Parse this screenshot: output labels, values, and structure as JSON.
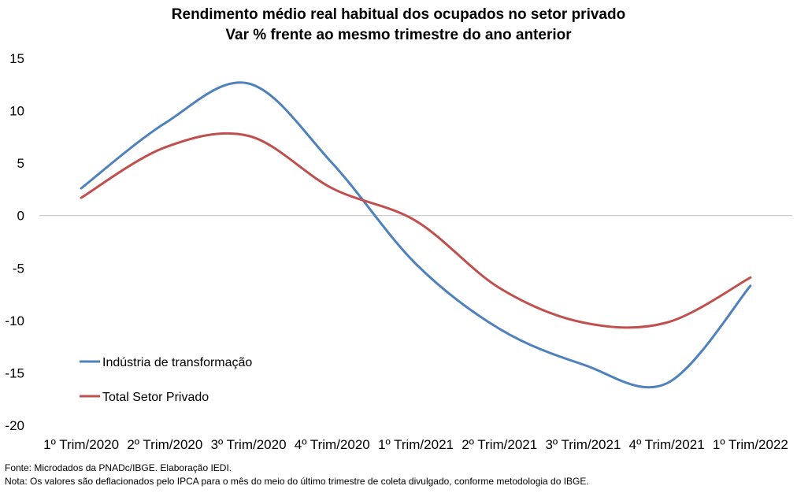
{
  "chart_data": {
    "type": "line",
    "title": "Rendimento médio real habitual dos ocupados no setor privado",
    "subtitle": "Var %  frente ao mesmo trimestre do ano anterior",
    "categories": [
      "1º Trim/2020",
      "2º Trim/2020",
      "3º Trim/2020",
      "4º Trim/2020",
      "1º Trim/2021",
      "2º Trim/2021",
      "3º Trim/2021",
      "4º Trim/2021",
      "1º Trim/2022"
    ],
    "series": [
      {
        "name": "Indústria de transformação",
        "color": "#4F81BD",
        "values": [
          2.6,
          8.8,
          12.6,
          5.0,
          -4.6,
          -10.8,
          -14.2,
          -16.0,
          -6.7
        ]
      },
      {
        "name": "Total Setor Privado",
        "color": "#C0504D",
        "values": [
          1.7,
          6.5,
          7.6,
          2.6,
          -0.5,
          -6.9,
          -10.2,
          -10.2,
          -5.9
        ]
      }
    ],
    "xlabel": "",
    "ylabel": "",
    "ylim": [
      -20,
      15
    ],
    "yticks": [
      "15",
      "10",
      "5",
      "0",
      "-5",
      "-10",
      "-15",
      "-20"
    ],
    "grid": false,
    "legend_position": "lower-left"
  },
  "footer": {
    "source": "Fonte: Microdados da PNADc/IBGE. Elaboração IEDI.",
    "note": "Nota: Os valores são deflacionados pelo IPCA para o mês do meio do último trimestre de coleta divulgado, conforme metodologia do IBGE."
  }
}
